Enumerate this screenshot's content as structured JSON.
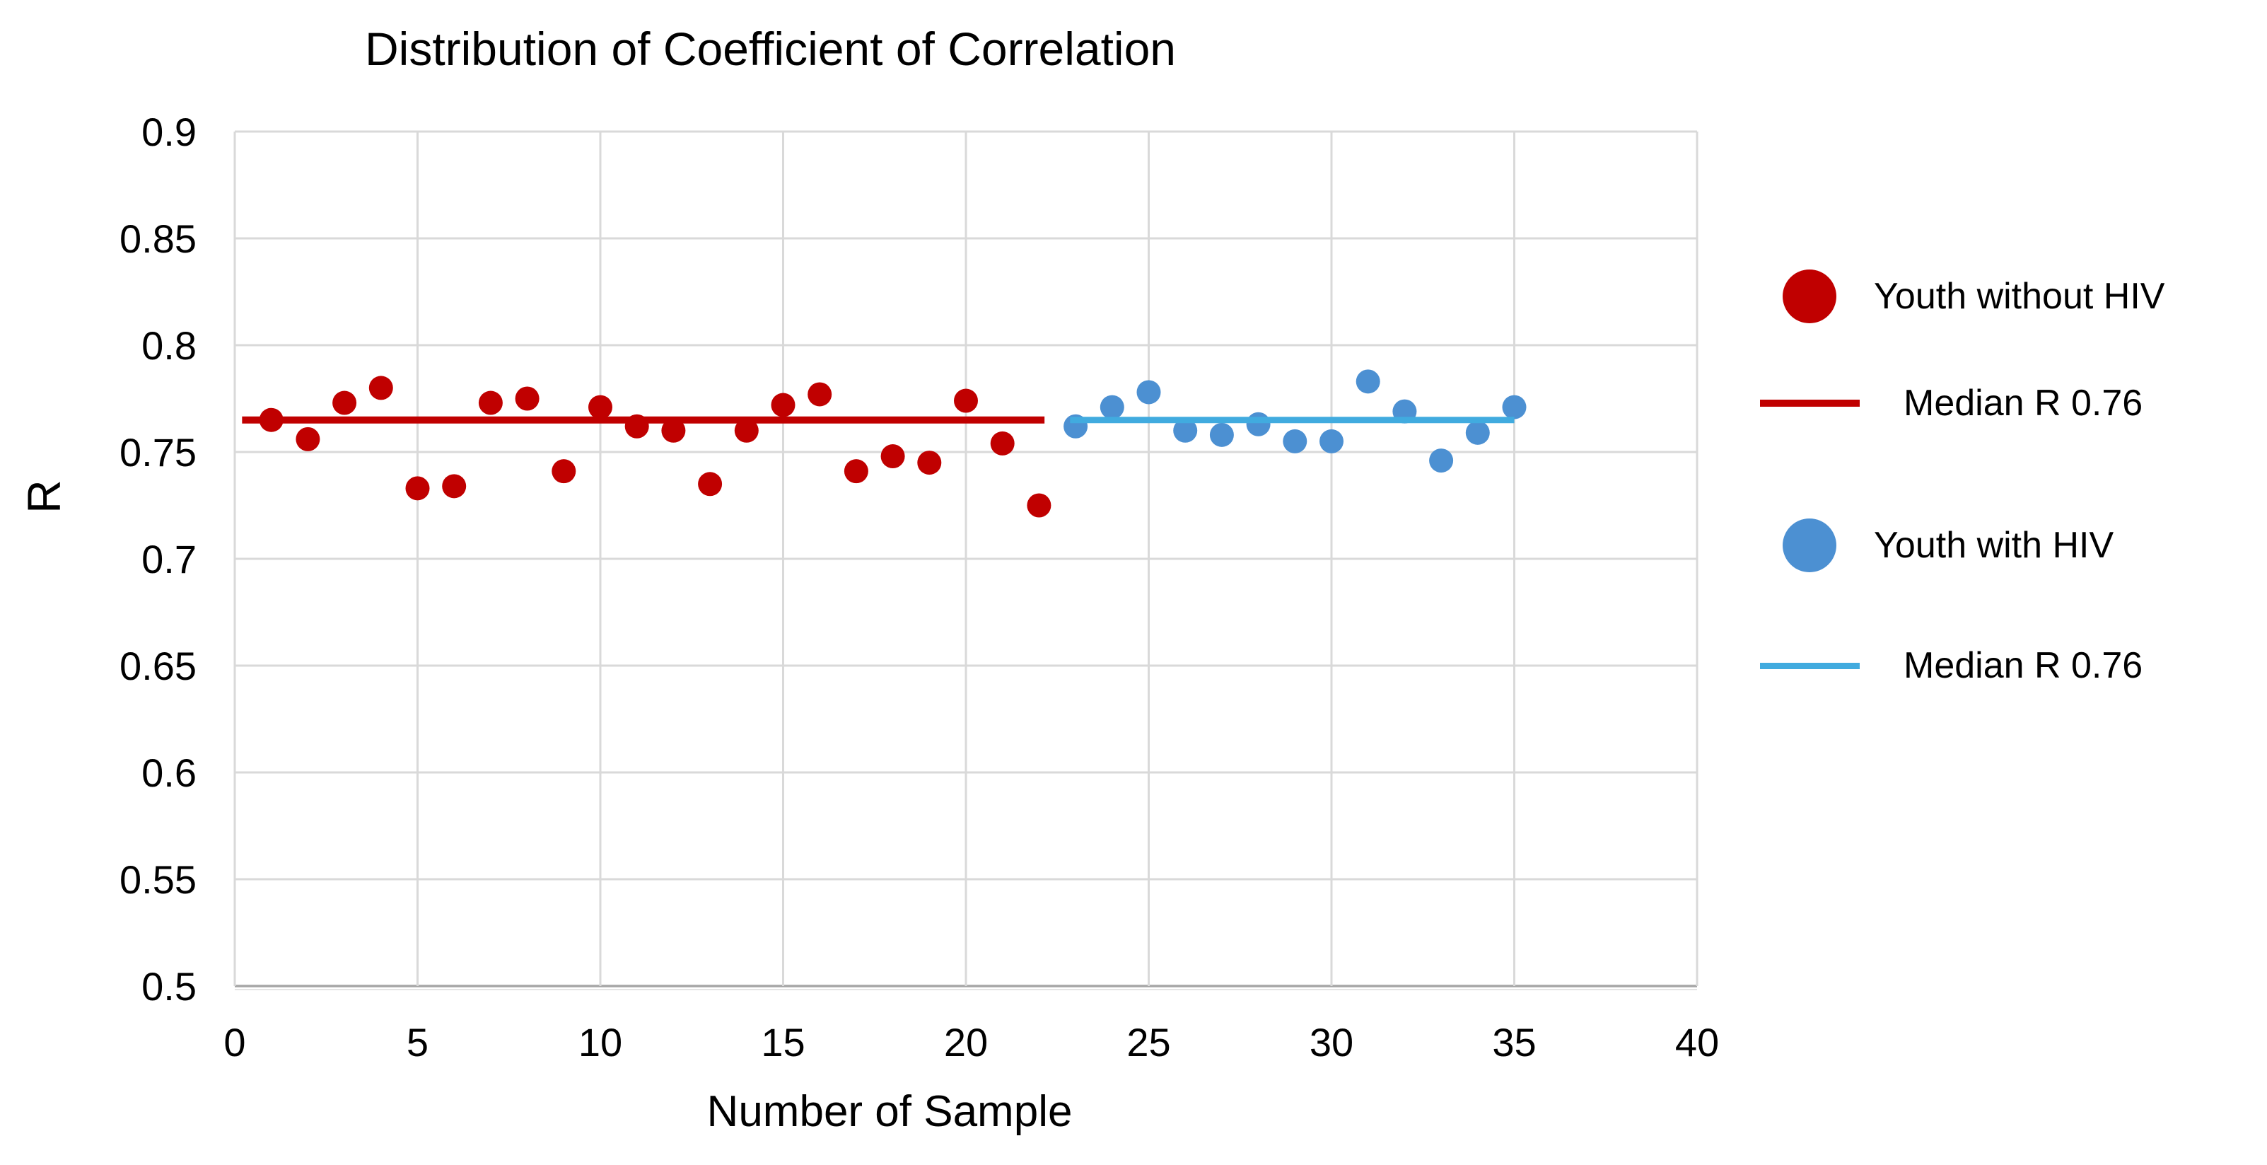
{
  "page": {
    "background": "#ffffff"
  },
  "chart_data": {
    "type": "scatter",
    "title": "Distribution of Coefficient of Correlation",
    "xlabel": "Number of Sample",
    "ylabel": "R",
    "xlim": [
      0,
      40
    ],
    "ylim": [
      0.5,
      0.9
    ],
    "x_ticks": [
      0,
      5,
      10,
      15,
      20,
      25,
      30,
      35,
      40
    ],
    "x_tick_labels": [
      "0",
      "5",
      "10",
      "15",
      "20",
      "25",
      "30",
      "35",
      "40"
    ],
    "y_ticks": [
      0.5,
      0.55,
      0.6,
      0.65,
      0.7,
      0.75,
      0.8,
      0.85,
      0.9
    ],
    "y_tick_labels": [
      "0.5",
      "0.55",
      "0.6",
      "0.65",
      "0.7",
      "0.75",
      "0.8",
      "0.85",
      "0.9"
    ],
    "grid": true,
    "legend_position": "right",
    "colors": {
      "gridline": "#D9D9D9",
      "axis_line": "#A6A6A6",
      "text": "#000000"
    },
    "series": [
      {
        "name": "Youth without HIV",
        "color": "#C00000",
        "x": [
          1,
          2,
          3,
          4,
          5,
          6,
          7,
          8,
          9,
          10,
          11,
          12,
          13,
          14,
          15,
          16,
          17,
          18,
          19,
          20,
          21,
          22
        ],
        "y": [
          0.765,
          0.756,
          0.773,
          0.78,
          0.733,
          0.734,
          0.773,
          0.775,
          0.741,
          0.771,
          0.762,
          0.76,
          0.735,
          0.76,
          0.772,
          0.777,
          0.741,
          0.748,
          0.745,
          0.774,
          0.754,
          0.725
        ]
      },
      {
        "name": "Youth with HIV",
        "color": "#4C90D2",
        "x": [
          23,
          24,
          25,
          26,
          27,
          28,
          29,
          30,
          31,
          32,
          33,
          34,
          35
        ],
        "y": [
          0.762,
          0.771,
          0.778,
          0.76,
          0.758,
          0.763,
          0.755,
          0.755,
          0.783,
          0.769,
          0.746,
          0.759,
          0.771
        ]
      }
    ],
    "median_lines": [
      {
        "label": "Median R 0.76",
        "color": "#C00000",
        "value": 0.765,
        "x_start": 0.2,
        "x_end": 22.15
      },
      {
        "label": "Median R 0.76",
        "color": "#41ABDF",
        "value": 0.765,
        "x_start": 22.85,
        "x_end": 35.0
      }
    ]
  }
}
